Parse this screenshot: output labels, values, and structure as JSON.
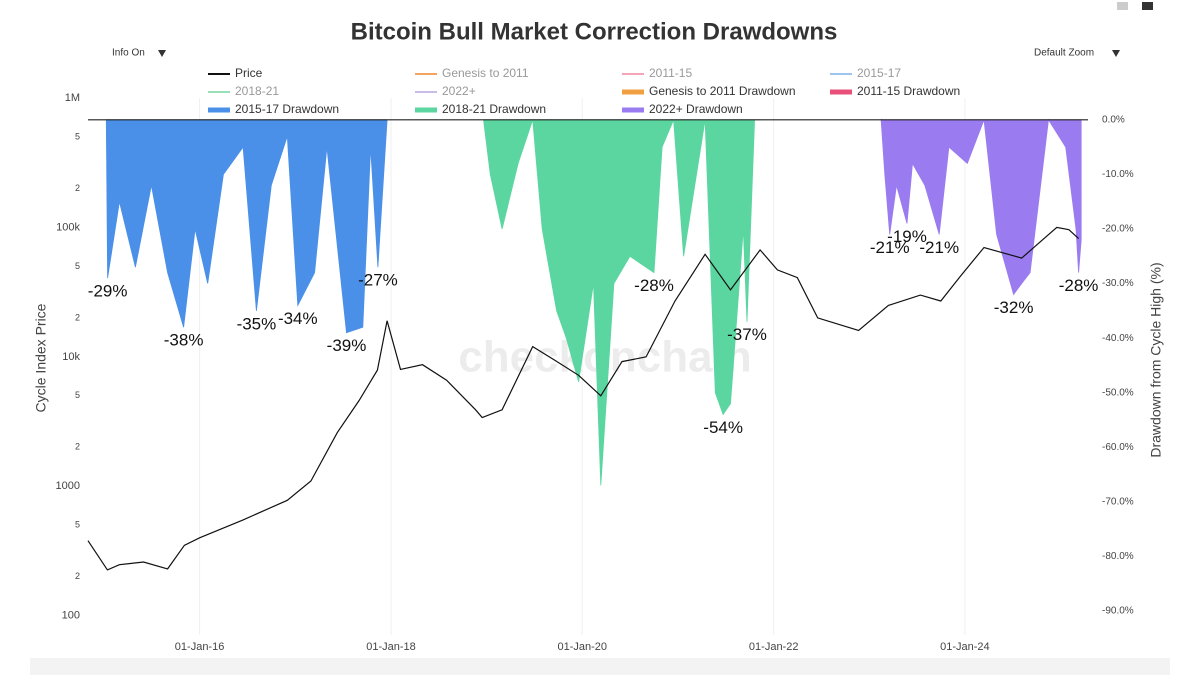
{
  "chart_data": {
    "type": "line",
    "title": "Bitcoin Bull Market Correction Drawdowns",
    "controls": {
      "info": "Info On",
      "zoom": "Default Zoom"
    },
    "watermark": "checkonchain",
    "y_label": "Cycle Index Price",
    "y2_label": "Drawdown from Cycle High (%)",
    "log_y": true,
    "xlim": [
      "2014-11-01",
      "2025-04-15"
    ],
    "xticks": [
      {
        "value": "2016-01-01",
        "label": "01-Jan-16"
      },
      {
        "value": "2018-01-01",
        "label": "01-Jan-18"
      },
      {
        "value": "2020-01-01",
        "label": "01-Jan-20"
      },
      {
        "value": "2022-01-01",
        "label": "01-Jan-22"
      },
      {
        "value": "2024-01-01",
        "label": "01-Jan-24"
      }
    ],
    "ylim": [
      71,
      1000000
    ],
    "yticks": [
      {
        "value": 1000000,
        "label": "1M"
      },
      {
        "value": 500000,
        "label": "5"
      },
      {
        "value": 200000,
        "label": "2"
      },
      {
        "value": 100000,
        "label": "100k"
      },
      {
        "value": 50000,
        "label": "5"
      },
      {
        "value": 20000,
        "label": "2"
      },
      {
        "value": 10000,
        "label": "10k"
      },
      {
        "value": 5000,
        "label": "5"
      },
      {
        "value": 2000,
        "label": "2"
      },
      1000,
      {
        "value": 500,
        "label": "5"
      },
      {
        "value": 200,
        "label": "2"
      },
      100
    ],
    "y2lim": [
      -94.4,
      4
    ],
    "y2ticks": [
      {
        "value": 0,
        "label": "0.0%"
      },
      {
        "value": -10,
        "label": "-10.0%"
      },
      {
        "value": -20,
        "label": "-20.0%"
      },
      {
        "value": -30,
        "label": "-30.0%"
      },
      {
        "value": -40,
        "label": "-40.0%"
      },
      {
        "value": -50,
        "label": "-50.0%"
      },
      {
        "value": -60,
        "label": "-60.0%"
      },
      {
        "value": -70,
        "label": "-70.0%"
      },
      {
        "value": -80,
        "label": "-80.0%"
      },
      {
        "value": -90,
        "label": "-90.0%"
      }
    ],
    "series": [
      {
        "name": "Price",
        "color": "#111111",
        "type": "line",
        "x": [
          "2014-11-01",
          "2015-01-14",
          "2015-03-01",
          "2015-06-01",
          "2015-09-01",
          "2015-11-04",
          "2016-01-01",
          "2016-06-15",
          "2016-12-01",
          "2017-03-01",
          "2017-06-10",
          "2017-09-01",
          "2017-11-10",
          "2017-12-17",
          "2018-02-06",
          "2018-05-01",
          "2018-08-01",
          "2018-11-20",
          "2018-12-15",
          "2019-03-01",
          "2019-06-26",
          "2019-09-15",
          "2019-12-18",
          "2020-03-12",
          "2020-06-01",
          "2020-09-01",
          "2020-12-20",
          "2021-04-14",
          "2021-07-20",
          "2021-11-10",
          "2022-01-15",
          "2022-04-01",
          "2022-06-18",
          "2022-11-21",
          "2023-03-15",
          "2023-07-15",
          "2023-10-01",
          "2023-12-15",
          "2024-03-14",
          "2024-08-05",
          "2024-11-12",
          "2024-12-17",
          "2025-02-01",
          "2025-03-10"
        ],
        "values": [
          380,
          226,
          248,
          260,
          230,
          350,
          400,
          550,
          780,
          1100,
          2600,
          4600,
          7900,
          19000,
          8000,
          8700,
          6600,
          3900,
          3400,
          3900,
          12000,
          9500,
          7200,
          5000,
          9200,
          10000,
          27000,
          62000,
          33000,
          67000,
          47000,
          41000,
          20000,
          16000,
          25000,
          30000,
          27000,
          42000,
          70000,
          58000,
          87000,
          100000,
          96000,
          82000
        ]
      },
      {
        "name": "Genesis to 2011",
        "color": "#f4a460",
        "type": "line",
        "x": [],
        "values": []
      },
      {
        "name": "2011-15",
        "color": "#f4a6b8",
        "type": "line",
        "x": [],
        "values": []
      },
      {
        "name": "2015-17",
        "color": "#9ec5ee",
        "type": "line",
        "x": [],
        "values": []
      },
      {
        "name": "2018-21",
        "color": "#98e0b8",
        "type": "line",
        "x": [],
        "values": []
      },
      {
        "name": "2022+",
        "color": "#c8bce8",
        "type": "line",
        "x": [],
        "values": []
      },
      {
        "name": "Genesis to 2011 Drawdown",
        "color": "#f0a040",
        "type": "area",
        "axis": "y2",
        "x": [],
        "values": []
      },
      {
        "name": "2011-15 Drawdown",
        "color": "#e8507a",
        "type": "area",
        "axis": "y2",
        "x": [],
        "values": []
      },
      {
        "name": "2015-17 Drawdown",
        "color": "#4a90e8",
        "type": "area",
        "axis": "y2",
        "x": [
          "2015-01-10",
          "2015-01-15",
          "2015-03-01",
          "2015-05-01",
          "2015-07-01",
          "2015-09-01",
          "2015-11-01",
          "2015-12-15",
          "2016-02-01",
          "2016-04-01",
          "2016-06-15",
          "2016-08-05",
          "2016-10-01",
          "2016-12-01",
          "2017-01-10",
          "2017-03-15",
          "2017-05-01",
          "2017-07-15",
          "2017-09-15",
          "2017-10-15",
          "2017-11-12",
          "2017-12-17"
        ],
        "values": [
          0,
          -29,
          -15,
          -27,
          -12,
          -28,
          -38,
          -20,
          -30,
          -10,
          -5,
          -35,
          -12,
          -3,
          -34,
          -28,
          -5,
          -39,
          -38,
          -5,
          -27,
          0
        ]
      },
      {
        "name": "2018-21 Drawdown",
        "color": "#5cd6a0",
        "type": "area",
        "axis": "y2",
        "x": [
          "2018-12-20",
          "2019-01-15",
          "2019-03-01",
          "2019-05-01",
          "2019-06-26",
          "2019-08-01",
          "2019-09-25",
          "2019-11-01",
          "2019-12-18",
          "2020-02-13",
          "2020-03-12",
          "2020-05-01",
          "2020-07-01",
          "2020-10-01",
          "2020-11-01",
          "2020-12-15",
          "2021-01-22",
          "2021-04-14",
          "2021-05-23",
          "2021-06-22",
          "2021-07-20",
          "2021-09-07",
          "2021-09-21",
          "2021-10-20",
          "2021-11-10"
        ],
        "values": [
          0,
          -10,
          -20,
          -8,
          0,
          -20,
          -35,
          -40,
          -48,
          -30,
          -67,
          -30,
          -25,
          -28,
          -5,
          0,
          -25,
          0,
          -50,
          -54,
          -52,
          -20,
          -37,
          0,
          0
        ]
      },
      {
        "name": "2022+ Drawdown",
        "color": "#9a7cf0",
        "type": "area",
        "axis": "y2",
        "x": [
          "2023-02-15",
          "2023-03-01",
          "2023-03-20",
          "2023-04-15",
          "2023-05-25",
          "2023-06-15",
          "2023-08-01",
          "2023-09-25",
          "2023-11-01",
          "2024-01-10",
          "2024-03-14",
          "2024-05-01",
          "2024-07-05",
          "2024-08-05",
          "2024-09-06",
          "2024-11-15",
          "2025-01-20",
          "2025-02-28",
          "2025-03-10",
          "2025-03-20"
        ],
        "values": [
          0,
          -10,
          -21,
          -12,
          -19,
          -8,
          -12,
          -21,
          -5,
          -8,
          0,
          -21,
          -32,
          -30,
          -28,
          0,
          -5,
          -20,
          -28,
          -22
        ]
      }
    ],
    "annotations": [
      {
        "text": "-29%",
        "x": "2015-01-15",
        "y": -29
      },
      {
        "text": "-38%",
        "x": "2015-11-01",
        "y": -38
      },
      {
        "text": "-35%",
        "x": "2016-08-05",
        "y": -35
      },
      {
        "text": "-34%",
        "x": "2017-01-10",
        "y": -34
      },
      {
        "text": "-39%",
        "x": "2017-07-15",
        "y": -39
      },
      {
        "text": "-27%",
        "x": "2017-11-12",
        "y": -27
      },
      {
        "text": "-28%",
        "x": "2020-10-01",
        "y": -28
      },
      {
        "text": "-54%",
        "x": "2021-06-22",
        "y": -54
      },
      {
        "text": "-37%",
        "x": "2021-09-21",
        "y": -37
      },
      {
        "text": "-21%",
        "x": "2023-03-20",
        "y": -21
      },
      {
        "text": "-19%",
        "x": "2023-05-25",
        "y": -19
      },
      {
        "text": "-21%",
        "x": "2023-09-25",
        "y": -21
      },
      {
        "text": "-32%",
        "x": "2024-07-05",
        "y": -32
      },
      {
        "text": "-28%",
        "x": "2025-03-10",
        "y": -28
      }
    ]
  }
}
